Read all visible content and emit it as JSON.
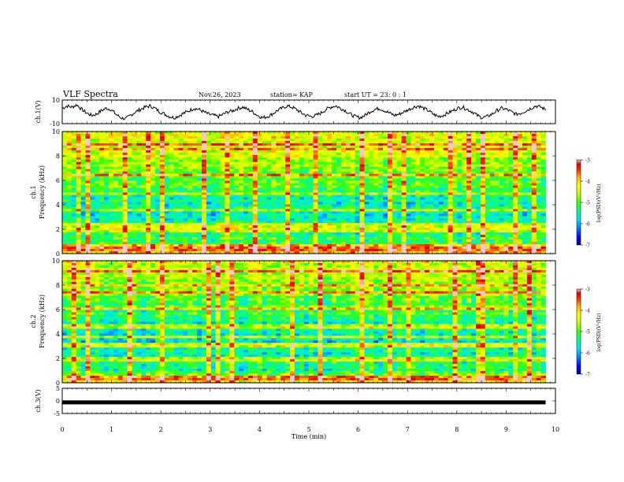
{
  "header": {
    "title": "VLF Spectra",
    "date": "Nov.26, 2023",
    "station": "station= KAP",
    "start": "start  UT  =   23: 0   : 1"
  },
  "colorbar": {
    "label": "log(PSD)(V²/Hz)",
    "ticks": [
      "-3",
      "-4",
      "-5",
      "-6",
      "-7"
    ],
    "colors": [
      "#000090",
      "#0000ff",
      "#0080ff",
      "#00e0ff",
      "#00ff90",
      "#40ff00",
      "#c0ff00",
      "#ffff00",
      "#ffb000",
      "#ff3000",
      "#e00000",
      "#f8c8c8"
    ]
  },
  "chart_data": [
    {
      "type": "line",
      "ylabel": "ch.1(V)",
      "ylim": [
        -10,
        10
      ],
      "yticks": [
        "10",
        "-10"
      ],
      "xlim": [
        0,
        10
      ],
      "x_end": 9.8,
      "description_values": "ch.1 waveform oscillating roughly between -7 and +7 V",
      "samples": [
        3,
        5,
        4,
        6,
        2,
        -1,
        -3,
        -2,
        1,
        3,
        2,
        -2,
        -5,
        -6,
        -3,
        0,
        2,
        4,
        5,
        3,
        0,
        -2,
        -4,
        -5,
        -3,
        -1,
        1,
        3,
        2,
        0,
        -2,
        -3,
        -4,
        -2,
        0,
        1,
        3,
        4,
        2,
        0,
        -3,
        -5,
        -4,
        -2,
        1,
        3,
        5,
        4,
        2,
        -1,
        -3,
        -4,
        -3,
        -1,
        2,
        4,
        5,
        3,
        1,
        -2,
        -4,
        -5,
        -3,
        0,
        2,
        3,
        1,
        -1,
        -3,
        -2,
        0,
        2,
        4,
        5,
        3,
        1,
        -2,
        -4,
        -3,
        -1,
        1,
        3,
        4,
        2,
        0,
        -3,
        -5,
        -4,
        -2,
        1,
        3,
        2,
        0,
        -2,
        -1,
        1,
        3,
        5,
        4,
        2
      ]
    },
    {
      "type": "heatmap",
      "ylabel_line1": "ch.1",
      "ylabel_line2": "Frequency  (kHz)",
      "ylim": [
        0,
        10
      ],
      "yticks": [
        "10",
        "8",
        "6",
        "4",
        "2",
        "0"
      ],
      "xlim": [
        0,
        10
      ],
      "x_end": 9.8,
      "zlim": [
        -7,
        -3
      ],
      "bands_khz": [
        0.3,
        0.6,
        1.9,
        2.3,
        3.6,
        4.9,
        6.5,
        8.6,
        9.0
      ],
      "band_profile_log_psd": [
        [
          0,
          -4.0
        ],
        [
          1,
          -5.2
        ],
        [
          2,
          -5.4
        ],
        [
          3,
          -5.6
        ],
        [
          4,
          -5.5
        ],
        [
          5,
          -5.3
        ],
        [
          6,
          -5.0
        ],
        [
          7,
          -4.8
        ],
        [
          8,
          -4.6
        ],
        [
          9,
          -4.4
        ],
        [
          10,
          -4.3
        ]
      ],
      "spike_times_min": [
        0.3,
        0.55,
        1.3,
        1.7,
        2.0,
        2.9,
        3.35,
        3.95,
        4.6,
        5.1,
        6.1,
        6.6,
        6.9,
        7.9,
        8.2,
        8.5,
        9.2,
        9.55
      ]
    },
    {
      "type": "heatmap",
      "ylabel_line1": "ch.2",
      "ylabel_line2": "Frequency  (kHz)",
      "ylim": [
        0,
        10
      ],
      "yticks": [
        "10",
        "8",
        "6",
        "4",
        "2",
        "0"
      ],
      "xlim": [
        0,
        10
      ],
      "x_end": 9.8,
      "zlim": [
        -7,
        -3
      ],
      "bands_khz": [
        0.4,
        1.9,
        3.1,
        3.7,
        4.6,
        6.0,
        7.4,
        8.0,
        9.1
      ],
      "band_profile_log_psd": [
        [
          0,
          -4.2
        ],
        [
          1,
          -5.4
        ],
        [
          2,
          -5.5
        ],
        [
          3,
          -5.6
        ],
        [
          4,
          -5.7
        ],
        [
          5,
          -5.4
        ],
        [
          6,
          -5.1
        ],
        [
          7,
          -4.9
        ],
        [
          8,
          -4.7
        ],
        [
          9,
          -4.5
        ],
        [
          10,
          -4.4
        ]
      ],
      "spike_times_min": [
        0.25,
        0.5,
        1.35,
        2.05,
        2.95,
        3.2,
        3.45,
        4.7,
        5.2,
        6.05,
        6.6,
        7.0,
        7.95,
        8.4,
        8.55,
        9.15,
        9.5
      ]
    },
    {
      "type": "line",
      "ylabel": "ch.3(V)",
      "ylim": [
        -5,
        5
      ],
      "yticks": [
        "5",
        "0",
        "-5"
      ],
      "xlim": [
        0,
        10
      ],
      "x_end": 9.8,
      "level": -0.6,
      "xlabel": "Time  (min)",
      "xticks": [
        "0",
        "1",
        "2",
        "3",
        "4",
        "5",
        "6",
        "7",
        "8",
        "9",
        "10"
      ]
    }
  ]
}
